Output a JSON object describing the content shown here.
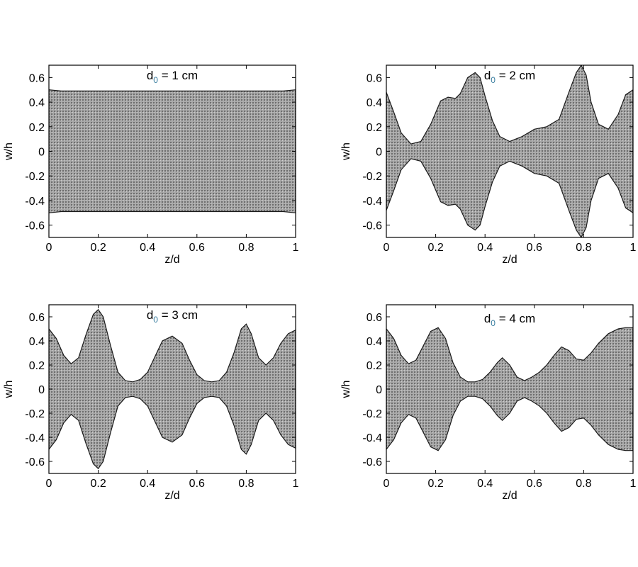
{
  "chart_data": [
    {
      "type": "area",
      "title_main": "d",
      "title_sub": "0",
      "title_rest": " = 1 cm",
      "xlabel": "z/d",
      "ylabel": "w/h",
      "xlim": [
        0,
        1
      ],
      "ylim": [
        -0.7,
        0.7
      ],
      "x_ticks": [
        "0",
        "0.2",
        "0.4",
        "0.6",
        "0.8",
        "1"
      ],
      "y_ticks": [
        "0.6",
        "0.4",
        "0.2",
        "0",
        "-0.2",
        "-0.4",
        "-0.6"
      ],
      "series": [
        {
          "x": [
            0,
            0.05,
            0.1,
            0.15,
            0.2,
            0.25,
            0.3,
            0.35,
            0.4,
            0.45,
            0.5,
            0.55,
            0.6,
            0.65,
            0.7,
            0.75,
            0.8,
            0.85,
            0.9,
            0.95,
            1.0
          ],
          "upper": [
            0.5,
            0.49,
            0.49,
            0.49,
            0.49,
            0.49,
            0.49,
            0.49,
            0.49,
            0.49,
            0.49,
            0.49,
            0.49,
            0.49,
            0.49,
            0.49,
            0.49,
            0.49,
            0.49,
            0.49,
            0.5
          ],
          "lower": [
            -0.5,
            -0.49,
            -0.49,
            -0.49,
            -0.49,
            -0.49,
            -0.49,
            -0.49,
            -0.49,
            -0.49,
            -0.49,
            -0.49,
            -0.49,
            -0.49,
            -0.49,
            -0.49,
            -0.49,
            -0.49,
            -0.49,
            -0.49,
            -0.5
          ]
        }
      ]
    },
    {
      "type": "area",
      "title_main": "d",
      "title_sub": "0",
      "title_rest": " = 2 cm",
      "xlabel": "z/d",
      "ylabel": "w/h",
      "xlim": [
        0,
        1
      ],
      "ylim": [
        -0.7,
        0.7
      ],
      "x_ticks": [
        "0",
        "0.2",
        "0.4",
        "0.6",
        "0.8",
        "1"
      ],
      "y_ticks": [
        "0.6",
        "0.4",
        "0.2",
        "0",
        "-0.2",
        "-0.4",
        "-0.6"
      ],
      "series": [
        {
          "x": [
            0,
            0.03,
            0.06,
            0.1,
            0.14,
            0.18,
            0.22,
            0.25,
            0.28,
            0.3,
            0.33,
            0.36,
            0.38,
            0.4,
            0.43,
            0.46,
            0.5,
            0.55,
            0.6,
            0.65,
            0.7,
            0.74,
            0.77,
            0.79,
            0.81,
            0.83,
            0.86,
            0.9,
            0.94,
            0.97,
            1.0
          ],
          "upper": [
            0.48,
            0.32,
            0.15,
            0.06,
            0.08,
            0.22,
            0.41,
            0.44,
            0.43,
            0.47,
            0.6,
            0.64,
            0.6,
            0.45,
            0.25,
            0.12,
            0.08,
            0.12,
            0.18,
            0.2,
            0.26,
            0.48,
            0.64,
            0.7,
            0.62,
            0.4,
            0.22,
            0.18,
            0.3,
            0.46,
            0.5
          ],
          "lower": [
            -0.48,
            -0.32,
            -0.15,
            -0.06,
            -0.08,
            -0.22,
            -0.41,
            -0.44,
            -0.43,
            -0.47,
            -0.6,
            -0.64,
            -0.6,
            -0.45,
            -0.25,
            -0.12,
            -0.08,
            -0.12,
            -0.18,
            -0.2,
            -0.26,
            -0.48,
            -0.64,
            -0.7,
            -0.62,
            -0.4,
            -0.22,
            -0.18,
            -0.3,
            -0.46,
            -0.5
          ]
        }
      ]
    },
    {
      "type": "area",
      "title_main": "d",
      "title_sub": "0",
      "title_rest": " = 3 cm",
      "xlabel": "z/d",
      "ylabel": "w/h",
      "xlim": [
        0,
        1
      ],
      "ylim": [
        -0.7,
        0.7
      ],
      "x_ticks": [
        "0",
        "0.2",
        "0.4",
        "0.6",
        "0.8",
        "1"
      ],
      "y_ticks": [
        "0.6",
        "0.4",
        "0.2",
        "0",
        "-0.2",
        "-0.4",
        "-0.6"
      ],
      "series": [
        {
          "x": [
            0,
            0.03,
            0.06,
            0.09,
            0.12,
            0.15,
            0.18,
            0.2,
            0.22,
            0.25,
            0.28,
            0.31,
            0.34,
            0.37,
            0.4,
            0.43,
            0.46,
            0.5,
            0.54,
            0.57,
            0.6,
            0.63,
            0.66,
            0.69,
            0.72,
            0.75,
            0.78,
            0.8,
            0.82,
            0.85,
            0.88,
            0.91,
            0.94,
            0.97,
            1.0
          ],
          "upper": [
            0.5,
            0.42,
            0.28,
            0.21,
            0.26,
            0.45,
            0.62,
            0.66,
            0.6,
            0.36,
            0.14,
            0.07,
            0.06,
            0.08,
            0.14,
            0.27,
            0.4,
            0.44,
            0.38,
            0.24,
            0.12,
            0.07,
            0.06,
            0.07,
            0.14,
            0.3,
            0.5,
            0.54,
            0.46,
            0.26,
            0.2,
            0.26,
            0.38,
            0.46,
            0.49
          ],
          "lower": [
            -0.5,
            -0.42,
            -0.28,
            -0.21,
            -0.26,
            -0.45,
            -0.62,
            -0.66,
            -0.6,
            -0.36,
            -0.14,
            -0.07,
            -0.06,
            -0.08,
            -0.14,
            -0.27,
            -0.4,
            -0.44,
            -0.38,
            -0.24,
            -0.12,
            -0.07,
            -0.06,
            -0.07,
            -0.14,
            -0.3,
            -0.5,
            -0.54,
            -0.46,
            -0.26,
            -0.2,
            -0.26,
            -0.38,
            -0.46,
            -0.49
          ]
        }
      ]
    },
    {
      "type": "area",
      "title_main": "d",
      "title_sub": "0",
      "title_rest": " = 4 cm",
      "xlabel": "z/d",
      "ylabel": "w/h",
      "xlim": [
        0,
        1
      ],
      "ylim": [
        -0.7,
        0.7
      ],
      "x_ticks": [
        "0",
        "0.2",
        "0.4",
        "0.6",
        "0.8",
        "1"
      ],
      "y_ticks": [
        "0.6",
        "0.4",
        "0.2",
        "0",
        "-0.2",
        "-0.4",
        "-0.6"
      ],
      "series": [
        {
          "x": [
            0,
            0.03,
            0.06,
            0.09,
            0.12,
            0.15,
            0.18,
            0.21,
            0.24,
            0.27,
            0.3,
            0.33,
            0.36,
            0.39,
            0.42,
            0.45,
            0.47,
            0.5,
            0.53,
            0.56,
            0.59,
            0.62,
            0.65,
            0.68,
            0.71,
            0.74,
            0.77,
            0.8,
            0.83,
            0.86,
            0.9,
            0.94,
            0.97,
            1.0
          ],
          "upper": [
            0.5,
            0.42,
            0.28,
            0.21,
            0.24,
            0.36,
            0.48,
            0.51,
            0.42,
            0.22,
            0.1,
            0.06,
            0.06,
            0.08,
            0.14,
            0.22,
            0.26,
            0.2,
            0.1,
            0.07,
            0.1,
            0.14,
            0.2,
            0.28,
            0.35,
            0.32,
            0.25,
            0.24,
            0.3,
            0.38,
            0.46,
            0.5,
            0.51,
            0.51
          ],
          "lower": [
            -0.5,
            -0.42,
            -0.28,
            -0.21,
            -0.24,
            -0.36,
            -0.48,
            -0.51,
            -0.42,
            -0.22,
            -0.1,
            -0.06,
            -0.06,
            -0.08,
            -0.14,
            -0.22,
            -0.26,
            -0.2,
            -0.1,
            -0.07,
            -0.1,
            -0.14,
            -0.2,
            -0.28,
            -0.35,
            -0.32,
            -0.25,
            -0.24,
            -0.3,
            -0.38,
            -0.46,
            -0.5,
            -0.51,
            -0.51
          ]
        }
      ]
    }
  ],
  "colors": {
    "fill": "#9a9a9a",
    "stroke": "#1a1a1a",
    "axis": "#000000",
    "title_sub": "#3a7ea0"
  }
}
